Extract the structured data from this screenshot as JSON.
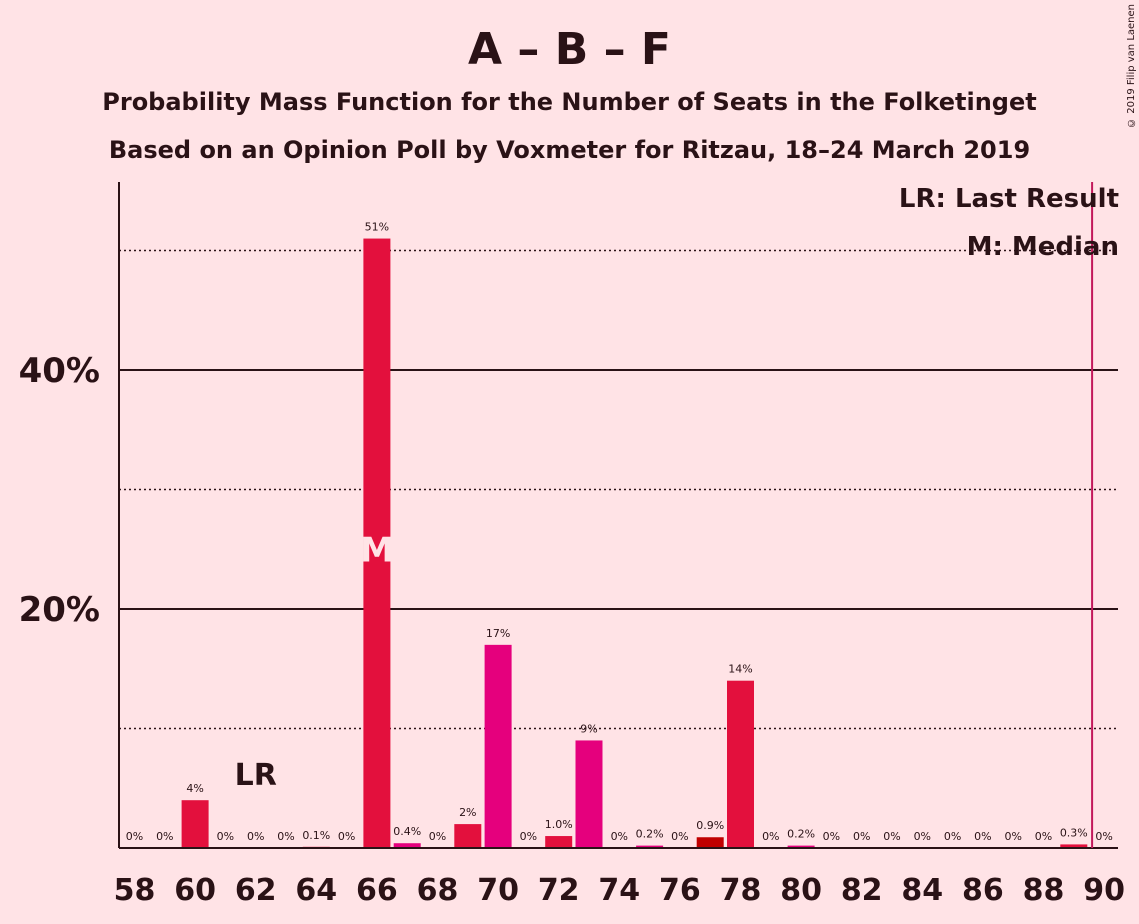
{
  "title": "A – B – F",
  "subtitle_1": "Probability Mass Function for the Number of Seats in the Folketinget",
  "subtitle_2": "Based on an Opinion Poll by Voxmeter for Ritzau, 18–24 March 2019",
  "copyright": "© 2019 Filip van Laenen",
  "legend": {
    "last_result": "LR: Last Result",
    "median": "M: Median"
  },
  "chart_data": {
    "type": "bar",
    "title": "A – B – F",
    "x": [
      58,
      59,
      60,
      61,
      62,
      63,
      64,
      65,
      66,
      67,
      68,
      69,
      70,
      71,
      72,
      73,
      74,
      75,
      76,
      77,
      78,
      79,
      80,
      81,
      82,
      83,
      84,
      85,
      86,
      87,
      88,
      89,
      90
    ],
    "values": [
      0,
      0,
      4,
      0,
      0,
      0,
      0.1,
      0,
      51,
      0.4,
      0,
      2,
      17,
      0,
      1.0,
      9,
      0,
      0.2,
      0,
      0.9,
      14,
      0,
      0.2,
      0,
      0,
      0,
      0,
      0,
      0,
      0,
      0,
      0.3,
      0
    ],
    "value_labels": [
      "0%",
      "0%",
      "4%",
      "0%",
      "0%",
      "0%",
      "0.1%",
      "0%",
      "51%",
      "0.4%",
      "0%",
      "2%",
      "17%",
      "0%",
      "1.0%",
      "9%",
      "0%",
      "0.2%",
      "0%",
      "0.9%",
      "14%",
      "0%",
      "0.2%",
      "0%",
      "0%",
      "0%",
      "0%",
      "0%",
      "0%",
      "0%",
      "0%",
      "0.3%",
      "0%"
    ],
    "x_tick_labels": [
      "58",
      "60",
      "62",
      "64",
      "66",
      "68",
      "70",
      "72",
      "74",
      "76",
      "78",
      "80",
      "82",
      "84",
      "86",
      "88",
      "90"
    ],
    "y_tick_labels": [
      "20%",
      "40%"
    ],
    "ylim": [
      0,
      55
    ],
    "xlim": [
      57.5,
      90.5
    ],
    "gridlines_solid": [
      20,
      40
    ],
    "gridlines_dotted": [
      10,
      30,
      50
    ],
    "last_result_seat": 62,
    "last_result_marker": "LR",
    "median_seat": 66,
    "median_marker": "M",
    "majority_line_seat": 90,
    "colors": {
      "background": "#FFE3E6",
      "bar_primary": "#E3103D",
      "bar_secondary": "#E5007D",
      "bar_dark": "#C00000",
      "majority_line": "#C2185B",
      "text": "#2a1216"
    },
    "bar_colors": [
      "#E3103D",
      "#E3103D",
      "#E3103D",
      "#E3103D",
      "#E3103D",
      "#E3103D",
      "#E3103D",
      "#E3103D",
      "#E3103D",
      "#E5007D",
      "#E3103D",
      "#E3103D",
      "#E5007D",
      "#E3103D",
      "#E3103D",
      "#E5007D",
      "#E3103D",
      "#E5007D",
      "#E3103D",
      "#C00000",
      "#E3103D",
      "#E3103D",
      "#E5007D",
      "#E3103D",
      "#E3103D",
      "#E3103D",
      "#E3103D",
      "#E3103D",
      "#E3103D",
      "#E3103D",
      "#E3103D",
      "#E3103D",
      "#E3103D"
    ]
  }
}
